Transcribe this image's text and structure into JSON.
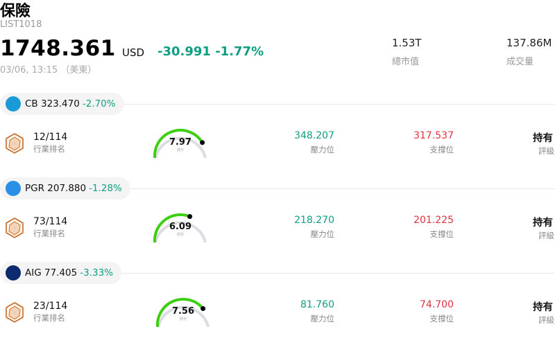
{
  "header": {
    "title": "保險",
    "code": "LIST1018",
    "price": "1748.361",
    "currency": "USD",
    "change": "-30.991 -1.77%",
    "timestamp": "03/06, 13:15 （美東）",
    "stats": [
      {
        "value": "1.53T",
        "label": "總市值"
      },
      {
        "value": "137.86M",
        "label": "成交量"
      }
    ]
  },
  "colors": {
    "up_green": "#0e9e82",
    "down_red": "#e0323e",
    "gauge_green": "#3ecf12",
    "gauge_track": "#dcdde3"
  },
  "stocks": [
    {
      "ticker": "CB",
      "price": "323.470",
      "change": "-2.70%",
      "logo_icon": "chubb-logo-icon",
      "logo_color": "#1a9ad6",
      "rank": "12/114",
      "rank_label": "行業排名",
      "score": "7.97",
      "score_label": "評分",
      "score_fraction": 0.797,
      "resistance": "348.207",
      "resistance_label": "壓力位",
      "support": "317.537",
      "support_label": "支撐位",
      "rating": "持有",
      "rating_label": "評級"
    },
    {
      "ticker": "PGR",
      "price": "207.880",
      "change": "-1.28%",
      "logo_icon": "progressive-logo-icon",
      "logo_color": "#2a8fe6",
      "rank": "73/114",
      "rank_label": "行業排名",
      "score": "6.09",
      "score_label": "評分",
      "score_fraction": 0.609,
      "resistance": "218.270",
      "resistance_label": "壓力位",
      "support": "201.225",
      "support_label": "支撐位",
      "rating": "持有",
      "rating_label": "評級"
    },
    {
      "ticker": "AIG",
      "price": "77.405",
      "change": "-3.33%",
      "logo_icon": "aig-logo-icon",
      "logo_color": "#0c2a6e",
      "rank": "23/114",
      "rank_label": "行業排名",
      "score": "7.56",
      "score_label": "評分",
      "score_fraction": 0.756,
      "resistance": "81.760",
      "resistance_label": "壓力位",
      "support": "74.700",
      "support_label": "支撐位",
      "rating": "持有",
      "rating_label": "評級"
    }
  ]
}
